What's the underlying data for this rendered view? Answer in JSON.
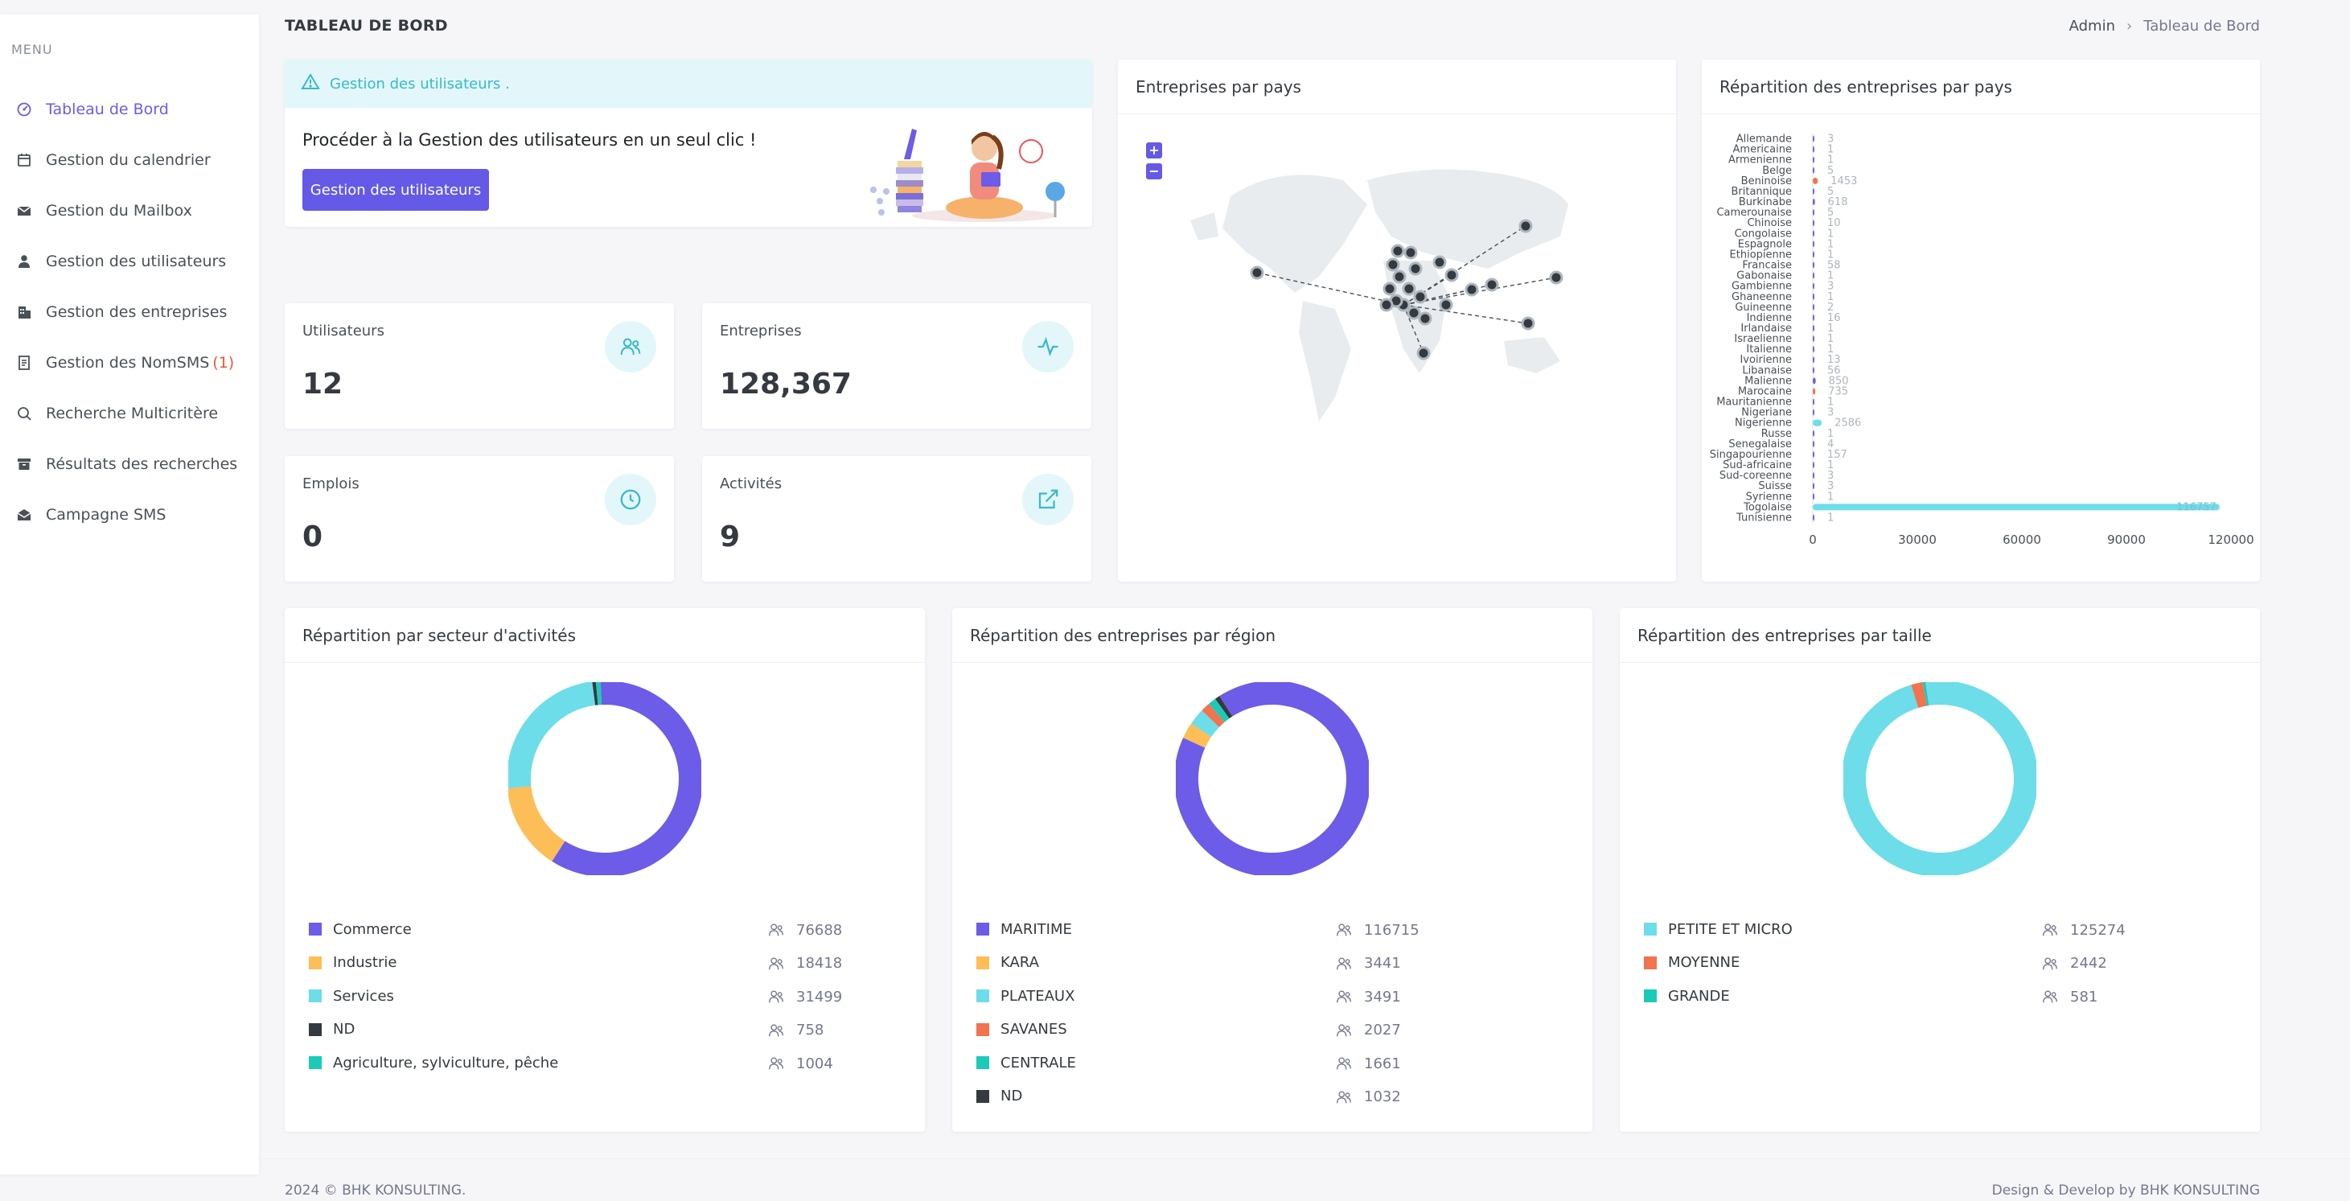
{
  "sidebar": {
    "menu_title": "MENU",
    "items": [
      {
        "label": "Tableau de Bord",
        "icon": "dashboard-icon",
        "active": true
      },
      {
        "label": "Gestion du calendrier",
        "icon": "calendar-icon"
      },
      {
        "label": "Gestion du Mailbox",
        "icon": "mailbox-icon"
      },
      {
        "label": "Gestion des utilisateurs",
        "icon": "user-icon"
      },
      {
        "label": "Gestion des entreprises",
        "icon": "building-icon"
      },
      {
        "label": "Gestion des NomSMS",
        "icon": "document-icon",
        "badge": "(1)"
      },
      {
        "label": "Recherche Multicritère",
        "icon": "search-icon"
      },
      {
        "label": "Résultats des recherches",
        "icon": "archive-icon"
      },
      {
        "label": "Campagne SMS",
        "icon": "envelope-open-icon"
      }
    ]
  },
  "header": {
    "title": "TABLEAU DE BORD",
    "breadcrumb": {
      "root": "Admin",
      "current": "Tableau de Bord"
    }
  },
  "promo": {
    "alert": "Gestion des utilisateurs .",
    "text": "Procéder à la Gestion des utilisateurs en un seul clic !",
    "button": "Gestion des utilisateurs"
  },
  "stats": [
    {
      "label": "Utilisateurs",
      "value": "12",
      "icon": "users-icon"
    },
    {
      "label": "Entreprises",
      "value": "128,367",
      "icon": "activity-icon"
    },
    {
      "label": "Emplois",
      "value": "0",
      "icon": "clock-icon"
    },
    {
      "label": "Activités",
      "value": "9",
      "icon": "external-link-icon"
    }
  ],
  "map_card": {
    "title": "Entreprises par pays",
    "zoom_in": "+",
    "zoom_out": "−"
  },
  "bar_card": {
    "title": "Répartition des entreprises par pays"
  },
  "secteur_card": {
    "title": "Répartition par secteur d'activités"
  },
  "region_card": {
    "title": "Répartition des entreprises par région"
  },
  "taille_card": {
    "title": "Répartition des entreprises par taille"
  },
  "colors": {
    "purple": "#6c5ce7",
    "yellow": "#fdbd57",
    "cyan": "#6ddde9",
    "dark": "#343a40",
    "teal": "#1ccab8",
    "orange": "#f1734f"
  },
  "chart_data": [
    {
      "type": "bar",
      "orientation": "horizontal",
      "title": "Répartition des entreprises par pays",
      "categories": [
        "Allemande",
        "Americaine",
        "Armenienne",
        "Belge",
        "Beninoise",
        "Britannique",
        "Burkinabe",
        "Camerounaise",
        "Chinoise",
        "Congolaise",
        "Espagnole",
        "Ethiopienne",
        "Francaise",
        "Gabonaise",
        "Gambienne",
        "Ghaneenne",
        "Guineenne",
        "Indienne",
        "Irlandaise",
        "Israelienne",
        "Italienne",
        "Ivoirienne",
        "Libanaise",
        "Malienne",
        "Marocaine",
        "Mauritanienne",
        "Nigeriane",
        "Nigerienne",
        "Russe",
        "Senegalaise",
        "Singapourienne",
        "Sud-africaine",
        "Sud-coreenne",
        "Suisse",
        "Syrienne",
        "Togolaise",
        "Tunisienne"
      ],
      "values": [
        3,
        1,
        1,
        5,
        1453,
        5,
        618,
        5,
        10,
        1,
        1,
        1,
        58,
        1,
        3,
        1,
        2,
        16,
        1,
        1,
        1,
        13,
        56,
        850,
        735,
        1,
        3,
        2586,
        1,
        4,
        157,
        1,
        3,
        3,
        1,
        116757,
        1
      ],
      "value_labels": [
        "3",
        "1",
        "1",
        "5",
        "1453",
        "5",
        "618",
        "5",
        "10",
        "1",
        "1",
        "1",
        "58",
        "1",
        "3",
        "1",
        "2",
        "16",
        "1",
        "1",
        "1",
        "13",
        "56",
        "850",
        "735",
        "1",
        "3",
        "2586",
        "1",
        "4",
        "157",
        "1",
        "3",
        "3",
        "1",
        "116757",
        "1"
      ],
      "xticks": [
        "0",
        "30000",
        "60000",
        "90000",
        "120000"
      ],
      "xlim": [
        0,
        120000
      ]
    },
    {
      "type": "pie",
      "title": "Répartition par secteur d'activités",
      "series": [
        {
          "name": "Commerce",
          "value": 76688,
          "label": "76688",
          "color": "#6c5ce7"
        },
        {
          "name": "Industrie",
          "value": 18418,
          "label": "18418",
          "color": "#fdbd57"
        },
        {
          "name": "Services",
          "value": 31499,
          "label": "31499",
          "color": "#6ddde9"
        },
        {
          "name": "ND",
          "value": 758,
          "label": "758",
          "color": "#343a40"
        },
        {
          "name": "Agriculture, sylviculture, pêche",
          "value": 1004,
          "label": "1004",
          "color": "#1ccab8"
        }
      ]
    },
    {
      "type": "pie",
      "title": "Répartition des entreprises par région",
      "series": [
        {
          "name": "MARITIME",
          "value": 116715,
          "label": "116715",
          "color": "#6c5ce7"
        },
        {
          "name": "KARA",
          "value": 3441,
          "label": "3441",
          "color": "#fdbd57"
        },
        {
          "name": "PLATEAUX",
          "value": 3491,
          "label": "3491",
          "color": "#6ddde9"
        },
        {
          "name": "SAVANES",
          "value": 2027,
          "label": "2027",
          "color": "#f1734f"
        },
        {
          "name": "CENTRALE",
          "value": 1661,
          "label": "1661",
          "color": "#1ccab8"
        },
        {
          "name": "ND",
          "value": 1032,
          "label": "1032",
          "color": "#343a40"
        }
      ]
    },
    {
      "type": "pie",
      "title": "Répartition des entreprises par taille",
      "series": [
        {
          "name": "PETITE ET MICRO",
          "value": 125274,
          "label": "125274",
          "color": "#6ddde9"
        },
        {
          "name": "MOYENNE",
          "value": 2442,
          "label": "2442",
          "color": "#f1734f"
        },
        {
          "name": "GRANDE",
          "value": 581,
          "label": "581",
          "color": "#1ccab8"
        }
      ]
    }
  ],
  "footer": {
    "left": "2024 © BHK KONSULTING.",
    "right": "Design & Develop by BHK KONSULTING"
  }
}
